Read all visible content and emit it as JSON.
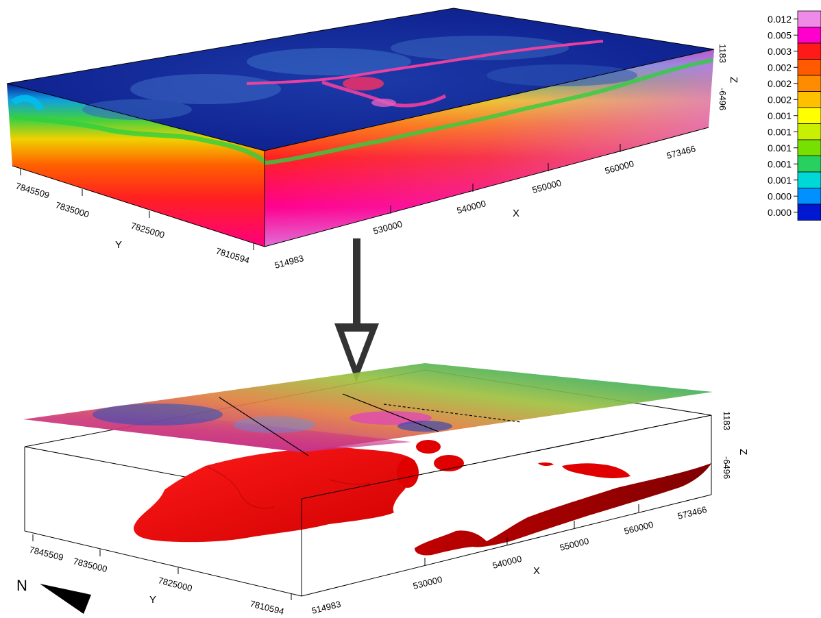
{
  "colorbar": {
    "values": [
      "0.012",
      "0.005",
      "0.003",
      "0.002",
      "0.002",
      "0.002",
      "0.001",
      "0.001",
      "0.001",
      "0.001",
      "0.001",
      "0.000",
      "0.000"
    ],
    "colors": [
      "#f08ae8",
      "#ff00cc",
      "#ff1a1a",
      "#ff5a00",
      "#ff8c00",
      "#ffc000",
      "#ffff00",
      "#c8f000",
      "#78e000",
      "#28d060",
      "#00d8d8",
      "#0090ff",
      "#0018d0"
    ]
  },
  "top_block": {
    "y_ticks": [
      "7845509",
      "7835000",
      "7825000",
      "7810594"
    ],
    "x_ticks": [
      "514983",
      "530000",
      "540000",
      "550000",
      "560000",
      "573466"
    ],
    "z_ticks": [
      "1183",
      "-6496"
    ],
    "x_label": "X",
    "y_label": "Y",
    "z_label": "Z"
  },
  "bottom_block": {
    "y_ticks": [
      "7845509",
      "7835000",
      "7825000",
      "7810594"
    ],
    "x_ticks": [
      "514983",
      "530000",
      "540000",
      "550000",
      "560000",
      "573466"
    ],
    "z_ticks": [
      "1183",
      "-6496"
    ],
    "x_label": "X",
    "y_label": "Y",
    "z_label": "Z"
  },
  "north_arrow": {
    "label": "N"
  }
}
